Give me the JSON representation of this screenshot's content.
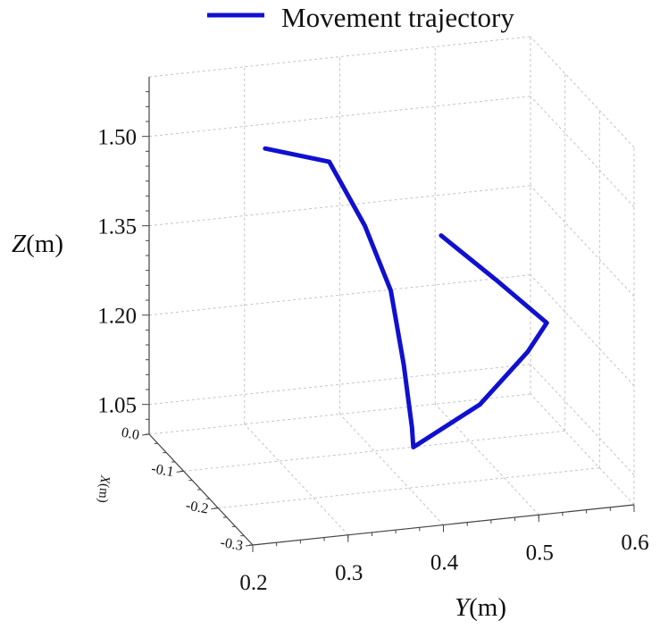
{
  "chart_data": {
    "type": "line",
    "legend": {
      "label": "Movement trajectory",
      "color": "#1010d0",
      "position": "top"
    },
    "axes": {
      "x": {
        "label": "X",
        "unit": "(m)",
        "range": [
          -0.3,
          0.0
        ],
        "ticks": [
          "0.0",
          "-0.1",
          "-0.2",
          "-0.3"
        ]
      },
      "y": {
        "label": "Y",
        "unit": "(m)",
        "range": [
          0.2,
          0.6
        ],
        "ticks": [
          "0.2",
          "0.3",
          "0.4",
          "0.5",
          "0.6"
        ]
      },
      "z": {
        "label": "Z",
        "unit": "(m)",
        "range": [
          1.0,
          1.6
        ],
        "ticks": [
          "1.05",
          "1.20",
          "1.35",
          "1.50"
        ]
      }
    },
    "grid": true,
    "series": [
      {
        "name": "Movement trajectory",
        "color": "#1010d0",
        "points": [
          {
            "x": -0.06,
            "y": 0.3,
            "z": 1.5
          },
          {
            "x": -0.08,
            "y": 0.36,
            "z": 1.48
          },
          {
            "x": -0.1,
            "y": 0.39,
            "z": 1.38
          },
          {
            "x": -0.12,
            "y": 0.41,
            "z": 1.28
          },
          {
            "x": -0.13,
            "y": 0.42,
            "z": 1.16
          },
          {
            "x": -0.14,
            "y": 0.425,
            "z": 1.06
          },
          {
            "x": -0.13,
            "y": 0.43,
            "z": 1.02
          },
          {
            "x": -0.13,
            "y": 0.5,
            "z": 1.08
          },
          {
            "x": -0.13,
            "y": 0.55,
            "z": 1.16
          },
          {
            "x": -0.13,
            "y": 0.57,
            "z": 1.205
          },
          {
            "x": -0.12,
            "y": 0.52,
            "z": 1.28
          },
          {
            "x": -0.1,
            "y": 0.47,
            "z": 1.35
          }
        ]
      }
    ]
  }
}
